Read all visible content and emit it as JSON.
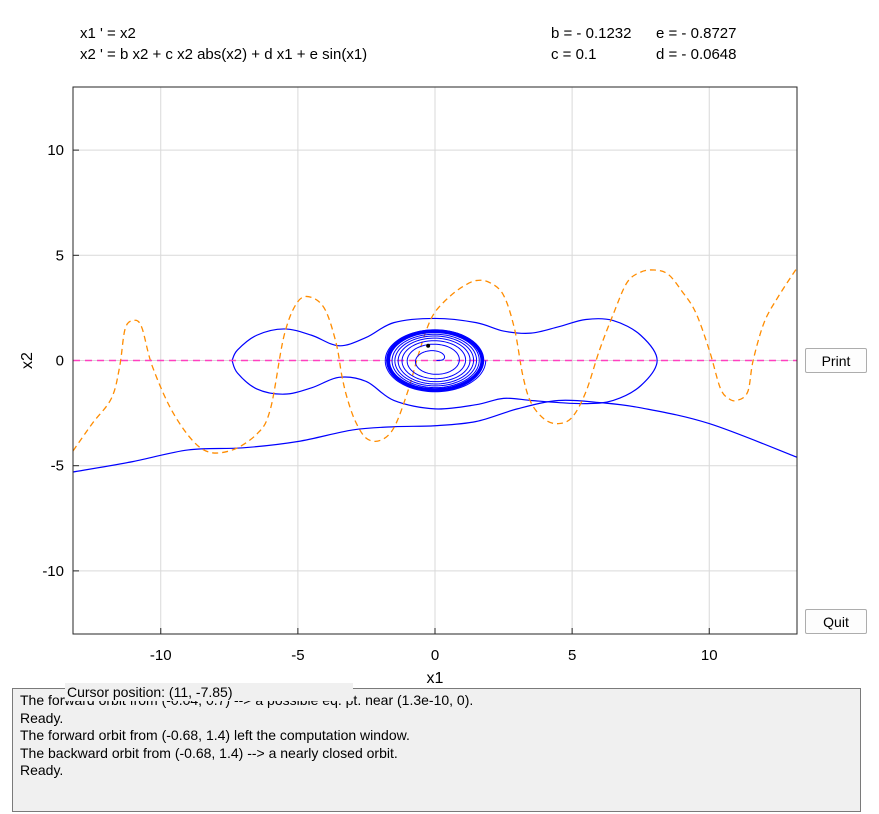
{
  "equations": {
    "line1": "x1 ' = x2",
    "line2": "x2 ' = b x2 + c x2 abs(x2) + d x1 + e sin(x1)"
  },
  "parameters": {
    "b": "b = - 0.1232",
    "c": "c = 0.1",
    "d": "d = - 0.0648",
    "e": "e = - 0.8727"
  },
  "buttons": {
    "print": "Print",
    "quit": "Quit"
  },
  "cursor_position": "Cursor position:  (11, -7.85)",
  "messages": [
    "The forward orbit from (-0.04, 0.7) --> a possible eq. pt. near (1.3e-10, 0).",
    "Ready.",
    "The forward orbit from (-0.68, 1.4) left the computation window.",
    "The backward orbit from (-0.68, 1.4) --> a nearly closed orbit.",
    "Ready."
  ],
  "colors": {
    "orbit": "#0000ff",
    "nullcline_dashed_orange": "#ff8c00",
    "nullcline_dashed_magenta": "#ff40c0",
    "grid": "#d9d9d9",
    "panel_bg": "#f0f0f0"
  },
  "chart_data": {
    "type": "line",
    "xlabel": "x1",
    "ylabel": "x2",
    "xlim": [
      -13.2,
      13.2
    ],
    "ylim": [
      -13,
      13
    ],
    "xticks": [
      -10,
      -5,
      0,
      5,
      10
    ],
    "yticks": [
      -10,
      -5,
      0,
      5,
      10
    ],
    "grid": true,
    "series": [
      {
        "style": "blue-solid",
        "x": [
          -13.2,
          -11,
          -9,
          -7,
          -5,
          -3,
          -1.5,
          0,
          1.5,
          3,
          4.5,
          6,
          7.5,
          10,
          13.2
        ],
        "y": [
          -5.3,
          -4.8,
          -4.25,
          -4.15,
          -3.85,
          -3.3,
          -3.15,
          -3.1,
          -2.9,
          -2.3,
          -1.9,
          -2.0,
          -2.25,
          -3,
          -4.6
        ]
      },
      {
        "style": "blue-solid",
        "x": [
          -7.4,
          -7.2,
          -6.5,
          -5.5,
          -4.5,
          -3.5,
          -2.5,
          -1.5,
          0,
          1.5,
          2.5,
          3.5,
          4.5,
          5.5,
          6.5,
          7.5,
          8.1,
          7.5,
          6.5,
          5.5,
          4.5,
          3.5,
          2.5,
          1.5,
          0,
          -1.5,
          -2.5,
          -3.5,
          -4.5,
          -5.5,
          -6.5,
          -7.2,
          -7.4
        ],
        "y": [
          0,
          0.5,
          1.2,
          1.5,
          1.2,
          0.7,
          1.1,
          1.8,
          2.0,
          1.8,
          1.4,
          1.3,
          1.6,
          1.95,
          1.9,
          1.2,
          0,
          -1.2,
          -1.9,
          -2.05,
          -2.0,
          -1.9,
          -1.8,
          -2.1,
          -2.3,
          -1.9,
          -1.0,
          -0.8,
          -1.3,
          -1.6,
          -1.35,
          -0.6,
          0
        ]
      },
      {
        "style": "orange-dashed",
        "x": [
          -13.2,
          -12.5,
          -11.8,
          -11.5,
          -11.3,
          -11,
          -10.7,
          -10.3,
          -9.5,
          -8.5,
          -7.5,
          -6.5,
          -6,
          -5.5,
          -5,
          -4.5,
          -4,
          -3.6,
          -3.4,
          -3.2,
          -2.9,
          -2.5,
          -2,
          -1.5,
          -1,
          -0.6,
          -0.3,
          0,
          0.5,
          1,
          1.5,
          2,
          2.5,
          2.9,
          3.2,
          3.5,
          4,
          4.5,
          5,
          5.5,
          6,
          6.5,
          7,
          7.5,
          8,
          8.5,
          9,
          9.5,
          10,
          10.4,
          10.7,
          11,
          11.4,
          11.6,
          12,
          12.5,
          13.2
        ],
        "y": [
          -4.3,
          -3.0,
          -1.8,
          -0.3,
          1.5,
          1.9,
          1.6,
          -0.3,
          -2.6,
          -4.2,
          -4.3,
          -3.5,
          -2.3,
          1.2,
          2.8,
          3.0,
          2.4,
          0.8,
          -0.7,
          -1.8,
          -2.9,
          -3.7,
          -3.8,
          -3.2,
          -1.5,
          0.3,
          1.5,
          2.3,
          3.0,
          3.5,
          3.8,
          3.7,
          3.1,
          1.5,
          -0.7,
          -2.0,
          -2.8,
          -3.0,
          -2.7,
          -1.5,
          0.5,
          2.2,
          3.7,
          4.2,
          4.3,
          4.1,
          3.3,
          2.3,
          0.5,
          -1.3,
          -1.8,
          -1.9,
          -1.5,
          0.0,
          1.8,
          3.0,
          4.4
        ]
      },
      {
        "style": "magenta-dashed",
        "x": [
          -13.2,
          13.2
        ],
        "y": [
          0,
          0
        ]
      }
    ],
    "spiral": {
      "center": [
        0,
        0
      ],
      "outer": [
        1.85,
        1.5
      ],
      "turns": 9
    },
    "marker": {
      "x": -0.25,
      "y": 0.7
    }
  }
}
